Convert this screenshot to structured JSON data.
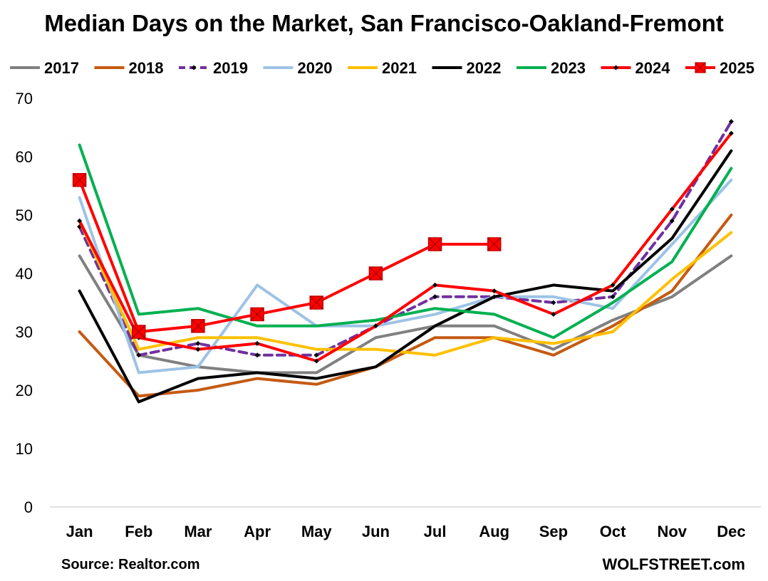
{
  "chart_data": {
    "type": "line",
    "title": "Median Days on the Market, San Francisco-Oakland-Fremont",
    "categories": [
      "Jan",
      "Feb",
      "Mar",
      "Apr",
      "May",
      "Jun",
      "Jul",
      "Aug",
      "Sep",
      "Oct",
      "Nov",
      "Dec"
    ],
    "ylim": [
      0,
      70
    ],
    "yticks": [
      0,
      10,
      20,
      30,
      40,
      50,
      60,
      70
    ],
    "grid": false,
    "legend_position": "top",
    "series": [
      {
        "name": "2017",
        "color": "#808080",
        "style": "solid",
        "marker": "none",
        "values": [
          43,
          26,
          24,
          23,
          23,
          29,
          31,
          31,
          27,
          32,
          36,
          43
        ]
      },
      {
        "name": "2018",
        "color": "#C55A11",
        "style": "solid",
        "marker": "none",
        "values": [
          30,
          19,
          20,
          22,
          21,
          24,
          29,
          29,
          26,
          31,
          37,
          50
        ]
      },
      {
        "name": "2019",
        "color": "#7030A0",
        "style": "dashed",
        "marker": "diamond",
        "values": [
          48,
          26,
          28,
          26,
          26,
          31,
          36,
          36,
          35,
          36,
          49,
          66
        ]
      },
      {
        "name": "2020",
        "color": "#9DC3E6",
        "style": "solid",
        "marker": "none",
        "values": [
          53,
          23,
          24,
          38,
          31,
          31,
          33,
          36,
          36,
          34,
          45,
          56
        ]
      },
      {
        "name": "2021",
        "color": "#FFC000",
        "style": "solid",
        "marker": "none",
        "values": [
          49,
          27,
          29,
          29,
          27,
          27,
          26,
          29,
          28,
          30,
          39,
          47
        ]
      },
      {
        "name": "2022",
        "color": "#000000",
        "style": "solid",
        "marker": "none",
        "values": [
          37,
          18,
          22,
          23,
          22,
          24,
          31,
          36,
          38,
          37,
          46,
          61
        ]
      },
      {
        "name": "2023",
        "color": "#00B050",
        "style": "solid",
        "marker": "none",
        "values": [
          62,
          33,
          34,
          31,
          31,
          32,
          34,
          33,
          29,
          35,
          42,
          58
        ]
      },
      {
        "name": "2024",
        "color": "#FF0000",
        "style": "solid",
        "marker": "diamond",
        "values": [
          49,
          29,
          27,
          28,
          25,
          31,
          38,
          37,
          33,
          38,
          51,
          64
        ]
      },
      {
        "name": "2025",
        "color": "#FF0000",
        "style": "solid",
        "marker": "square",
        "values": [
          56,
          30,
          31,
          33,
          35,
          40,
          45,
          45,
          null,
          null,
          null,
          null
        ]
      }
    ]
  },
  "footer": {
    "source": "Source: Realtor.com",
    "brand": "WOLFSTREET.com"
  }
}
